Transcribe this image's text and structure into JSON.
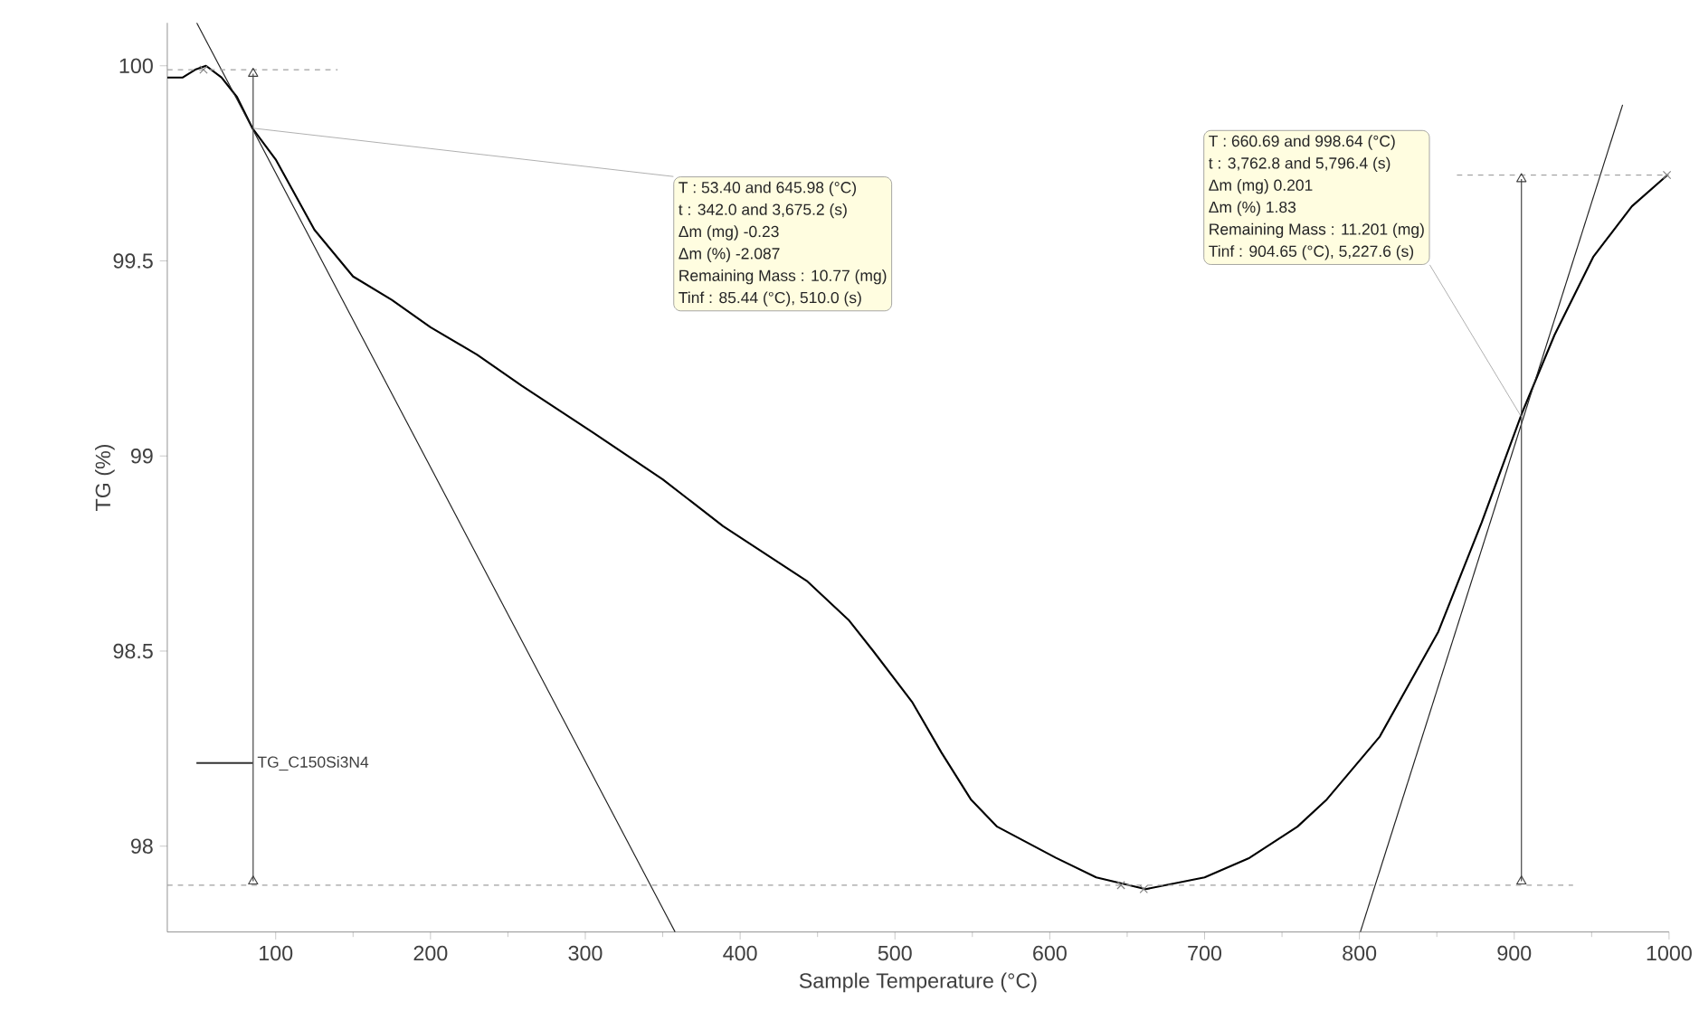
{
  "chart_data": {
    "type": "line",
    "xlabel": "Sample Temperature (°C)",
    "ylabel": "TG (%)",
    "xlim": [
      30,
      1000
    ],
    "ylim": [
      97.78,
      100.11
    ],
    "xticks": [
      100,
      200,
      300,
      400,
      500,
      600,
      700,
      800,
      900,
      1000
    ],
    "yticks": [
      98,
      98.5,
      99,
      99.5,
      100
    ],
    "legend": "bottom left",
    "series": [
      {
        "name": "TG_C150Si3N4",
        "color": "#000000",
        "x": [
          30,
          40,
          48,
          55,
          65,
          75,
          85,
          100,
          125,
          150,
          175,
          200,
          230,
          259,
          305,
          350,
          389,
          443,
          470,
          486,
          511,
          530,
          549,
          566,
          604,
          630,
          662,
          700,
          729,
          760,
          779,
          813,
          851,
          879,
          905,
          926,
          951,
          976,
          999
        ],
        "values": [
          99.97,
          99.97,
          99.99,
          100.0,
          99.97,
          99.92,
          99.84,
          99.76,
          99.58,
          99.46,
          99.4,
          99.33,
          99.26,
          99.18,
          99.06,
          98.94,
          98.82,
          98.68,
          98.58,
          98.5,
          98.37,
          98.24,
          98.12,
          98.05,
          97.97,
          97.92,
          97.89,
          97.92,
          97.97,
          98.05,
          98.12,
          98.28,
          98.55,
          98.83,
          99.11,
          99.31,
          99.51,
          99.64,
          99.72
        ]
      },
      {
        "color": "#202020",
        "x": [
          49,
          358
        ],
        "values": [
          100.11,
          97.78
        ]
      },
      {
        "color": "#202020",
        "x": [
          800.6,
          970
        ],
        "values": [
          97.78,
          99.9
        ]
      },
      {
        "color": "#a0a0a0",
        "line_style": "dashed",
        "x": [
          30,
          140
        ],
        "values": [
          99.99,
          99.99
        ]
      },
      {
        "color": "#a0a0a0",
        "line_style": "dashed",
        "x": [
          30,
          938
        ],
        "values": [
          97.9,
          97.9
        ]
      },
      {
        "color": "#a0a0a0",
        "line_style": "dashed",
        "x": [
          863,
          1000
        ],
        "values": [
          99.72,
          99.72
        ]
      },
      {
        "color": "#404040",
        "marker": "triangle",
        "x": [
          85.44,
          85.44
        ],
        "values": [
          99.98,
          97.91
        ]
      },
      {
        "color": "#404040",
        "marker": "triangle",
        "x": [
          904.65,
          904.65
        ],
        "values": [
          99.71,
          97.91
        ]
      },
      {
        "type": "scatter",
        "color": "#808080",
        "marker": "cross",
        "x": [
          53.4,
          645.98,
          660.69,
          998.64
        ],
        "values": [
          99.99,
          97.9,
          97.89,
          99.72
        ]
      }
    ],
    "annotations": [
      {
        "text": "T : 53.40 and 645.98 (°C)",
        "x": 85.44,
        "y": 99.84
      },
      "t : 342.0 and 3,675.2 (s)",
      "Δm (mg) -0.23",
      "Δm (%) -2.087",
      "Remaining Mass : 10.77 (mg)",
      "Tinf : 85.44 (°C), 510.0 (s)",
      "T : 660.69 and 998.64 (°C)",
      "t : 3,762.8 and 5,796.4 (s)",
      "Δm (mg) 0.201",
      "Δm (%) 1.83",
      "Remaining Mass : 11.201 (mg)",
      {
        "text": "Tinf : 904.65 (°C), 5,227.6 (s)",
        "x": 904.65,
        "y": 99.1
      }
    ]
  }
}
